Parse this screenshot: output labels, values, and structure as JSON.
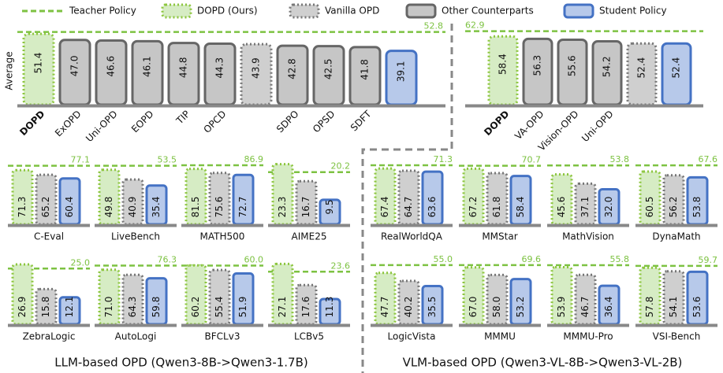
{
  "legend": [
    {
      "name": "Teacher Policy",
      "color": "#7dc242",
      "fill": "none",
      "dash": "7 4"
    },
    {
      "name": "DOPD (Ours)",
      "color": "#8dc63f",
      "fill": "#d6ecc4",
      "dash": "2 3"
    },
    {
      "name": "Vanilla OPD",
      "color": "#777777",
      "fill": "#cfcfcf",
      "dash": "2 3"
    },
    {
      "name": "Other Counterparts",
      "color": "#666666",
      "fill": "#c6c6c6",
      "dash": "none"
    },
    {
      "name": "Student Policy",
      "color": "#4472c4",
      "fill": "#b7c9ea",
      "dash": "none"
    }
  ],
  "chart_data": [
    {
      "type": "bar",
      "group": "top",
      "ylabel": "Average",
      "teacher": 52.8,
      "teacher_label": "52.8",
      "ylim": [
        0,
        56
      ],
      "categories": [
        "DOPD",
        "ExOPD",
        "Uni-OPD",
        "EOPD",
        "TIP",
        "OPCD",
        null,
        "SDPO",
        "OPSD",
        "SDFT",
        null
      ],
      "values": [
        51.4,
        47,
        46.6,
        46.1,
        44.8,
        44.3,
        43.9,
        42.8,
        42.5,
        41.8,
        39.1
      ],
      "value_labels": [
        "51.4",
        "47.0",
        "46.6",
        "46.1",
        "44.8",
        "44.3",
        "43.9",
        "42.8",
        "42.5",
        "41.8",
        "39.1"
      ],
      "kinds": [
        "DOPD (Ours)",
        "Other Counterparts",
        "Other Counterparts",
        "Other Counterparts",
        "Other Counterparts",
        "Other Counterparts",
        "Vanilla OPD",
        "Other Counterparts",
        "Other Counterparts",
        "Other Counterparts",
        "Student Policy"
      ]
    },
    {
      "type": "bar",
      "group": "top",
      "teacher": 62.9,
      "teacher_label": "62.9",
      "ylim": [
        0,
        66
      ],
      "categories": [
        "DOPD",
        "VA-OPD",
        "Vision-OPD",
        "Uni-OPD",
        null,
        null
      ],
      "values": [
        58.4,
        56.3,
        55.6,
        54.2,
        52.4,
        52.4
      ],
      "value_labels": [
        "58.4",
        "56.3",
        "55.6",
        "54.2",
        "52.4",
        "52.4"
      ],
      "kinds": [
        "DOPD (Ours)",
        "Other Counterparts",
        "Other Counterparts",
        "Other Counterparts",
        "Vanilla OPD",
        "Student Policy"
      ]
    },
    {
      "type": "bar",
      "title": "C-Eval",
      "teacher": 77.1,
      "teacher_label": "77.1",
      "ylim": [
        0,
        85
      ],
      "values": [
        71.3,
        65.2,
        60.4
      ],
      "value_labels": [
        "71.3",
        "65.2",
        "60.4"
      ]
    },
    {
      "type": "bar",
      "title": "LiveBench",
      "teacher": 53.5,
      "teacher_label": "53.5",
      "ylim": [
        0,
        59
      ],
      "values": [
        49.8,
        40.9,
        35.4
      ],
      "value_labels": [
        "49.8",
        "40.9",
        "35.4"
      ]
    },
    {
      "type": "bar",
      "title": "MATH500",
      "teacher": 86.9,
      "teacher_label": "86.9",
      "ylim": [
        0,
        95
      ],
      "values": [
        81.5,
        75.6,
        72.7
      ],
      "value_labels": [
        "81.5",
        "75.6",
        "72.7"
      ]
    },
    {
      "type": "bar",
      "title": "AIME25",
      "teacher": 20.2,
      "teacher_label": "20.2",
      "ylim": [
        0,
        25
      ],
      "values": [
        23.3,
        16.7,
        9.5
      ],
      "value_labels": [
        "23.3",
        "16.7",
        "9.5"
      ]
    },
    {
      "type": "bar",
      "title": "RealWorldQA",
      "teacher": 71.3,
      "teacher_label": "71.3",
      "ylim": [
        0,
        78
      ],
      "values": [
        67.4,
        64.7,
        63.6
      ],
      "value_labels": [
        "67.4",
        "64.7",
        "63.6"
      ]
    },
    {
      "type": "bar",
      "title": "MMStar",
      "teacher": 70.7,
      "teacher_label": "70.7",
      "ylim": [
        0,
        78
      ],
      "values": [
        67.2,
        61.8,
        58.4
      ],
      "value_labels": [
        "67.2",
        "61.8",
        "58.4"
      ]
    },
    {
      "type": "bar",
      "title": "MathVision",
      "teacher": 53.8,
      "teacher_label": "53.8",
      "ylim": [
        0,
        59
      ],
      "values": [
        45.6,
        37.1,
        32
      ],
      "value_labels": [
        "45.6",
        "37.1",
        "32.0"
      ]
    },
    {
      "type": "bar",
      "title": "DynaMath",
      "teacher": 67.6,
      "teacher_label": "67.6",
      "ylim": [
        0,
        74
      ],
      "values": [
        60.5,
        56.2,
        53.8
      ],
      "value_labels": [
        "60.5",
        "56.2",
        "53.8"
      ]
    },
    {
      "type": "bar",
      "title": "ZebraLogic",
      "teacher": 25,
      "teacher_label": "25.0",
      "ylim": [
        0,
        29
      ],
      "values": [
        26.9,
        15.8,
        12.1
      ],
      "value_labels": [
        "26.9",
        "15.8",
        "12.1"
      ]
    },
    {
      "type": "bar",
      "title": "AutoLogi",
      "teacher": 76.3,
      "teacher_label": "76.3",
      "ylim": [
        0,
        84
      ],
      "values": [
        71,
        64.3,
        59.8
      ],
      "value_labels": [
        "71.0",
        "64.3",
        "59.8"
      ]
    },
    {
      "type": "bar",
      "title": "BFCLv3",
      "teacher": 60,
      "teacher_label": "60.0",
      "ylim": [
        0,
        66
      ],
      "values": [
        60.2,
        55.4,
        51.9
      ],
      "value_labels": [
        "60.2",
        "55.4",
        "51.9"
      ]
    },
    {
      "type": "bar",
      "title": "LCBv5",
      "teacher": 23.6,
      "teacher_label": "23.6",
      "ylim": [
        0,
        29
      ],
      "values": [
        27.1,
        17.6,
        11.3
      ],
      "value_labels": [
        "27.1",
        "17.6",
        "11.3"
      ]
    },
    {
      "type": "bar",
      "title": "LogicVista",
      "teacher": 55,
      "teacher_label": "55.0",
      "ylim": [
        0,
        60
      ],
      "values": [
        47.7,
        40.2,
        35.5
      ],
      "value_labels": [
        "47.7",
        "40.2",
        "35.5"
      ]
    },
    {
      "type": "bar",
      "title": "MMMU",
      "teacher": 69.6,
      "teacher_label": "69.6",
      "ylim": [
        0,
        76
      ],
      "values": [
        67,
        58,
        53.2
      ],
      "value_labels": [
        "67.0",
        "58.0",
        "53.2"
      ]
    },
    {
      "type": "bar",
      "title": "MMMU-Pro",
      "teacher": 55.8,
      "teacher_label": "55.8",
      "ylim": [
        0,
        61
      ],
      "values": [
        53.9,
        46.7,
        36.4
      ],
      "value_labels": [
        "53.9",
        "46.7",
        "36.4"
      ]
    },
    {
      "type": "bar",
      "title": "VSI-Bench",
      "teacher": 59.7,
      "teacher_label": "59.7",
      "ylim": [
        0,
        66
      ],
      "values": [
        57.8,
        54.1,
        53.6
      ],
      "value_labels": [
        "57.8",
        "54.1",
        "53.6"
      ]
    }
  ],
  "captions": [
    "LLM-based OPD (Qwen3-8B->Qwen3-1.7B)",
    "VLM-based OPD (Qwen3-VL-8B->Qwen3-VL-2B)"
  ]
}
